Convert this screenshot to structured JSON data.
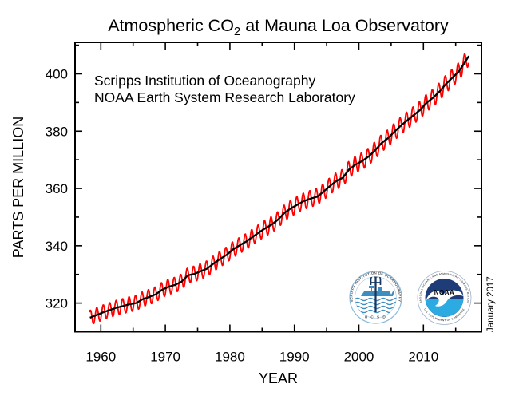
{
  "figure": {
    "title_prefix": "Atmospheric CO",
    "title_sub": "2",
    "title_suffix": " at Mauna Loa Observatory",
    "date_stamp": "January 2017"
  },
  "annotation": {
    "line1": "Scripps Institution of Oceanography",
    "line2": "NOAA Earth System Research Laboratory"
  },
  "logos": {
    "scripps": {
      "ring_text": "SCRIPPS INSTITUTION OF OCEANOGRAPHY",
      "bottom_text": "U C S D"
    },
    "noaa": {
      "ring_top_text": "NATIONAL OCEANIC AND ATMOSPHERIC ADMINISTRATION",
      "ring_bottom_text": "U.S. DEPARTMENT OF COMMERCE",
      "wordmark": "NOAA"
    }
  },
  "colors": {
    "seasonal_line": "#ff0000",
    "trend_line": "#000000",
    "scripps_blue": "#3f8cc0",
    "scripps_navy": "#16355f",
    "noaa_navy": "#1d3c78",
    "noaa_cyan": "#2caae2"
  },
  "chart_data": {
    "type": "line",
    "title": "Atmospheric CO2 at Mauna Loa Observatory",
    "xlabel": "YEAR",
    "ylabel": "PARTS PER MILLION",
    "xlim": [
      1956,
      2019
    ],
    "ylim": [
      310,
      411
    ],
    "grid": false,
    "legend": "none",
    "x_ticks_major": [
      1960,
      1970,
      1980,
      1990,
      2000,
      2010
    ],
    "x_ticks_minor": [
      1965,
      1975,
      1985,
      1995,
      2005,
      2015
    ],
    "y_ticks_major": [
      320,
      340,
      360,
      380,
      400
    ],
    "y_ticks_minor": [
      330,
      350,
      370,
      390,
      410
    ],
    "series": [
      {
        "name": "Monthly mean CO2 (with seasonal cycle)",
        "color": "#ff0000",
        "style": "seasonal"
      },
      {
        "name": "Seasonally corrected trend",
        "color": "#000000",
        "style": "trend"
      }
    ],
    "trend_points": [
      [
        1958.3,
        314.9
      ],
      [
        1959.5,
        315.97
      ],
      [
        1960.5,
        316.91
      ],
      [
        1961.5,
        317.64
      ],
      [
        1962.5,
        318.45
      ],
      [
        1963.5,
        318.99
      ],
      [
        1964.5,
        319.62
      ],
      [
        1965.5,
        320.04
      ],
      [
        1966.5,
        321.38
      ],
      [
        1967.5,
        322.16
      ],
      [
        1968.5,
        323.04
      ],
      [
        1969.5,
        324.62
      ],
      [
        1970.5,
        325.68
      ],
      [
        1971.5,
        326.32
      ],
      [
        1972.5,
        327.45
      ],
      [
        1973.5,
        329.68
      ],
      [
        1974.5,
        330.18
      ],
      [
        1975.5,
        331.11
      ],
      [
        1976.5,
        332.04
      ],
      [
        1977.5,
        333.83
      ],
      [
        1978.5,
        335.4
      ],
      [
        1979.5,
        336.84
      ],
      [
        1980.5,
        338.75
      ],
      [
        1981.5,
        340.11
      ],
      [
        1982.5,
        341.45
      ],
      [
        1983.5,
        343.05
      ],
      [
        1984.5,
        344.65
      ],
      [
        1985.5,
        346.12
      ],
      [
        1986.5,
        347.42
      ],
      [
        1987.5,
        349.19
      ],
      [
        1988.5,
        351.57
      ],
      [
        1989.5,
        353.12
      ],
      [
        1990.5,
        354.39
      ],
      [
        1991.5,
        355.61
      ],
      [
        1992.5,
        356.45
      ],
      [
        1993.5,
        357.1
      ],
      [
        1994.5,
        358.83
      ],
      [
        1995.5,
        360.82
      ],
      [
        1996.5,
        362.61
      ],
      [
        1997.5,
        363.73
      ],
      [
        1998.5,
        366.7
      ],
      [
        1999.5,
        368.38
      ],
      [
        2000.5,
        369.55
      ],
      [
        2001.5,
        371.14
      ],
      [
        2002.5,
        373.28
      ],
      [
        2003.5,
        375.8
      ],
      [
        2004.5,
        377.52
      ],
      [
        2005.5,
        379.8
      ],
      [
        2006.5,
        381.9
      ],
      [
        2007.5,
        383.79
      ],
      [
        2008.5,
        385.6
      ],
      [
        2009.5,
        387.43
      ],
      [
        2010.5,
        389.9
      ],
      [
        2011.5,
        391.65
      ],
      [
        2012.5,
        393.85
      ],
      [
        2013.5,
        396.52
      ],
      [
        2014.5,
        398.65
      ],
      [
        2015.5,
        400.83
      ],
      [
        2016.5,
        404.24
      ],
      [
        2017.05,
        406.2
      ]
    ],
    "seasonal": {
      "t_start": 1958.25,
      "t_end": 2017.04,
      "points_per_year": 12,
      "amplitude_start": 2.6,
      "amplitude_end": 3.2,
      "phase": 0.12
    }
  }
}
